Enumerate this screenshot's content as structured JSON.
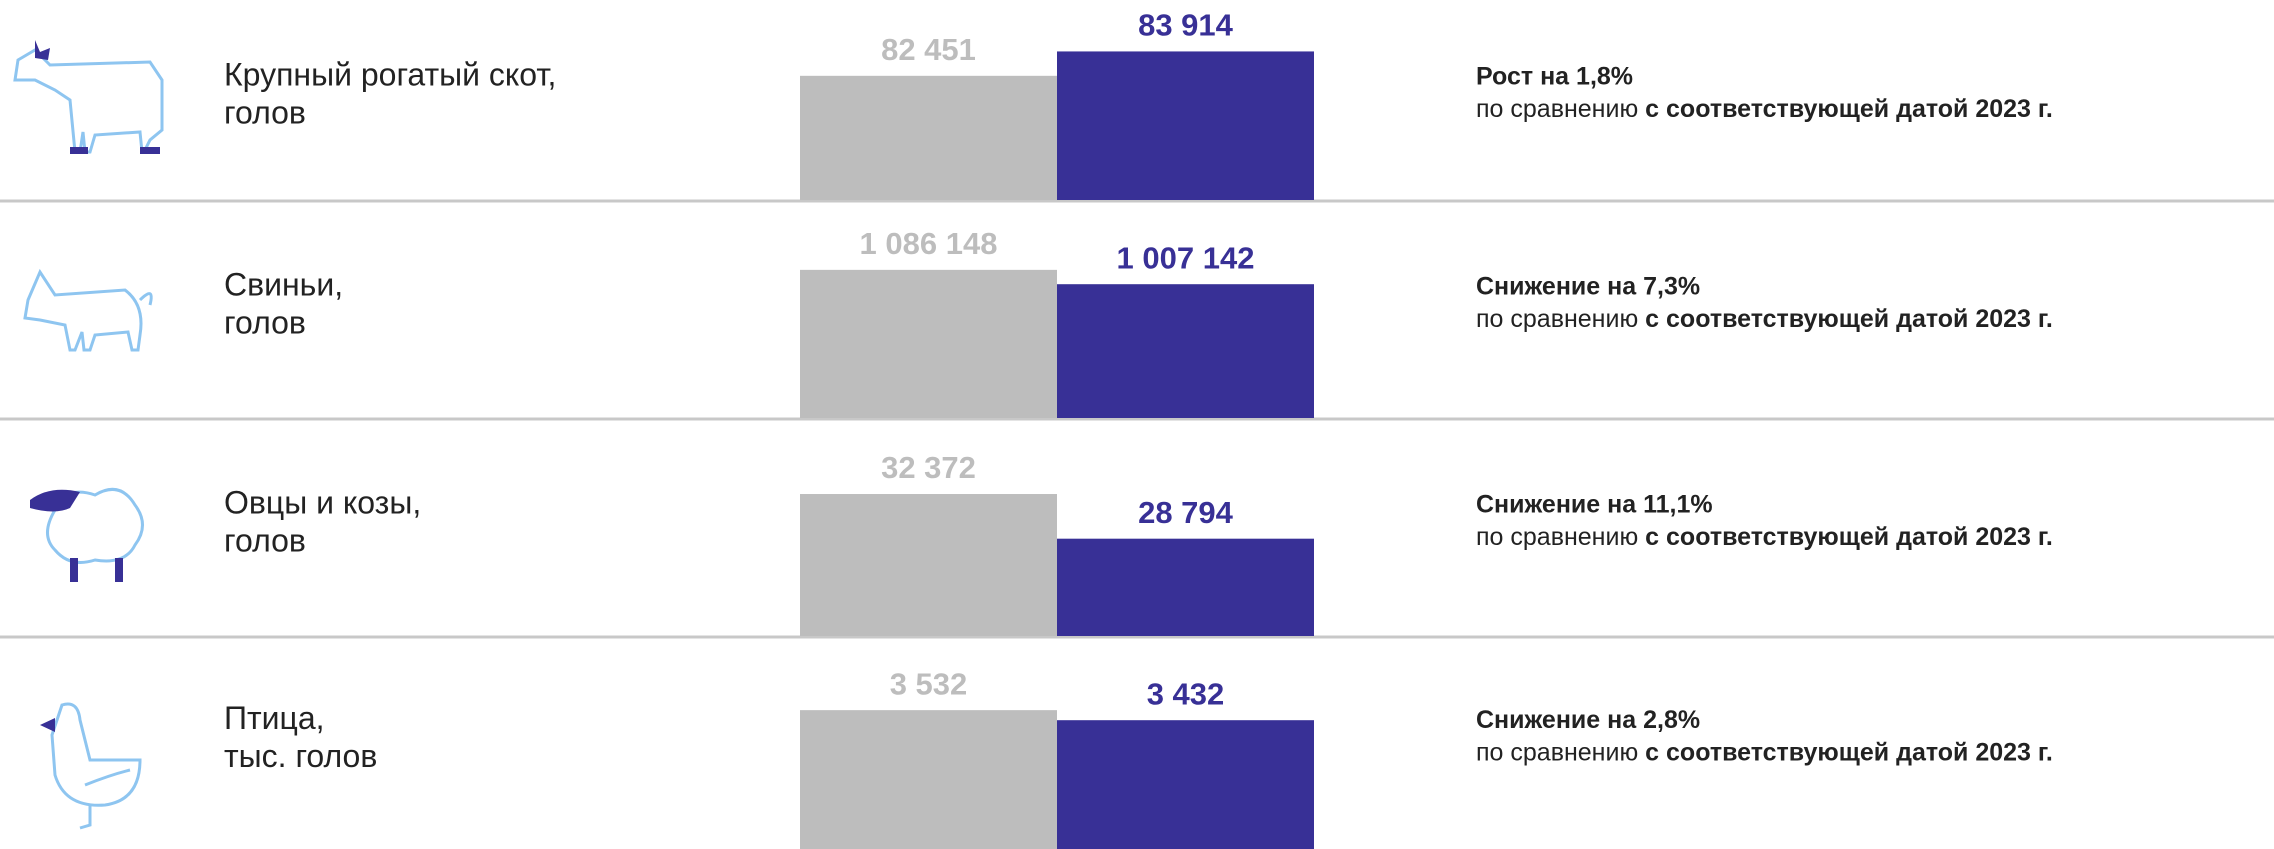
{
  "chart_data": [
    {
      "type": "bar",
      "label": [
        "Крупный рогатый скот,",
        "голов"
      ],
      "values": [
        82451,
        83914
      ],
      "value_labels": [
        "82 451",
        "83 914"
      ],
      "colors": [
        "#bdbdbd",
        "#383096"
      ],
      "ylim": [
        75000,
        87000
      ],
      "annotation": {
        "headline": "Рост на 1,8%",
        "text": "по сравнению",
        "text_bold": "с соответствующей датой 2023 г."
      }
    },
    {
      "type": "bar",
      "label": [
        "Свиньи,",
        "голов"
      ],
      "values": [
        1086148,
        1007142
      ],
      "value_labels": [
        "1 086 148",
        "1 007 142"
      ],
      "colors": [
        "#bdbdbd",
        "#383096"
      ],
      "ylim": [
        270000,
        1460000
      ],
      "annotation": {
        "headline": "Снижение на 7,3%",
        "text": "по сравнению",
        "text_bold": "с соответствующей датой 2023 г."
      }
    },
    {
      "type": "bar",
      "label": [
        "Овцы и козы,",
        "голов"
      ],
      "values": [
        32372,
        28794
      ],
      "value_labels": [
        "32 372",
        "28 794"
      ],
      "colors": [
        "#bdbdbd",
        "#383096"
      ],
      "ylim": [
        21000,
        38300
      ],
      "annotation": {
        "headline": "Снижение на 11,1%",
        "text": "по сравнению",
        "text_bold": "с соответствующей датой 2023 г."
      }
    },
    {
      "type": "bar",
      "label": [
        "Птица,",
        "тыс. голов"
      ],
      "values": [
        3532,
        3432
      ],
      "value_labels": [
        "3 532",
        "3 432"
      ],
      "colors": [
        "#bdbdbd",
        "#383096"
      ],
      "ylim": [
        2150,
        4250
      ],
      "annotation": {
        "headline": "Снижение на 2,8%",
        "text": "по сравнению",
        "text_bold": "с соответствующей датой 2023 г."
      }
    }
  ]
}
